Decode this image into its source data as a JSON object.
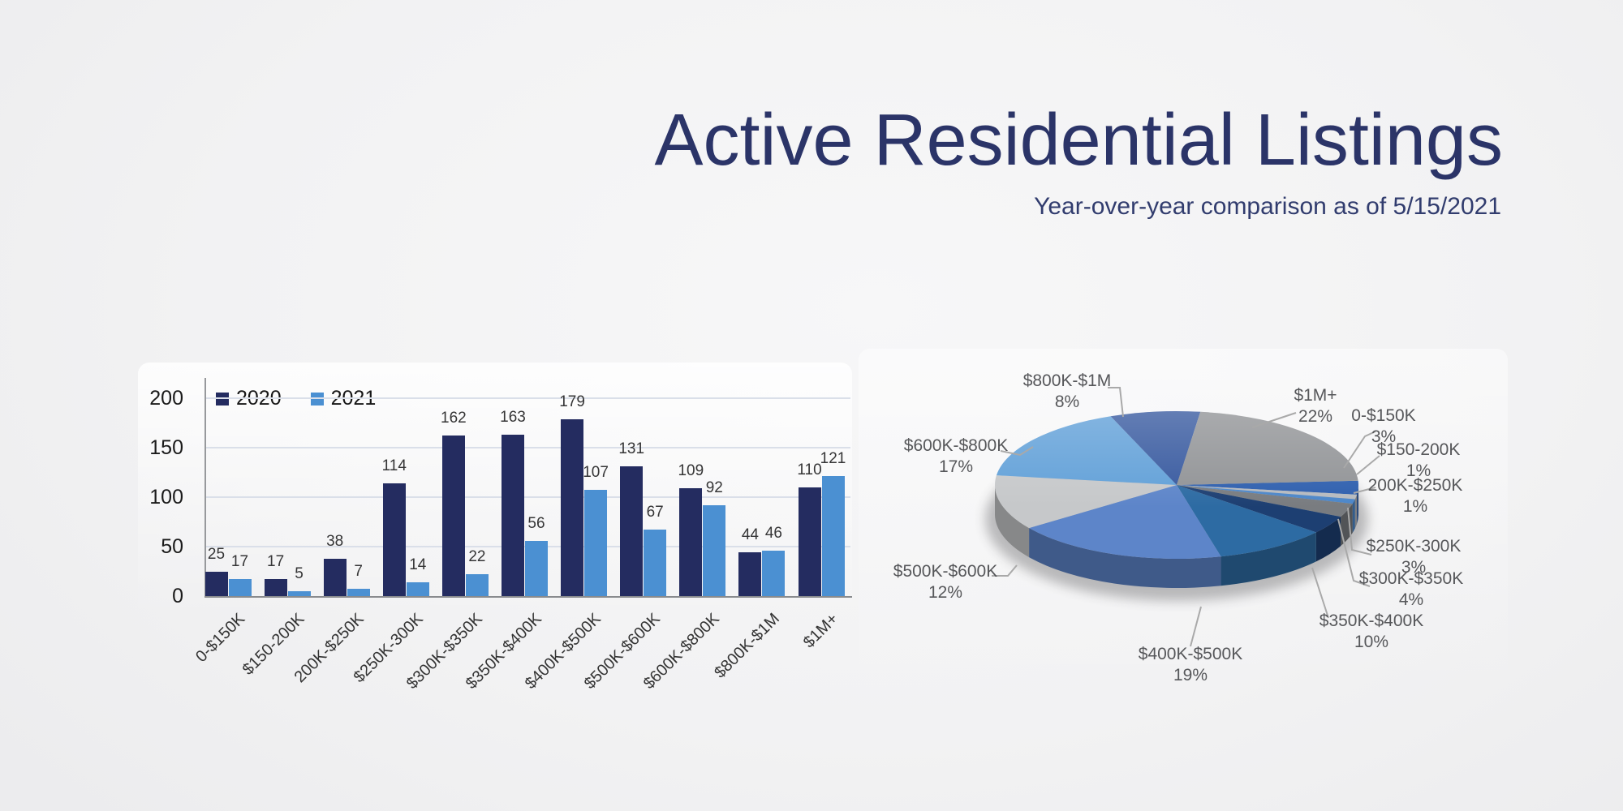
{
  "header": {
    "title": "Active Residential Listings",
    "subtitle": "Year-over-year comparison as of 5/15/2021",
    "title_color": "#2b3468"
  },
  "chart_data": [
    {
      "type": "bar",
      "title": "",
      "xlabel": "",
      "ylabel": "",
      "categories": [
        "0-$150K",
        "$150-200K",
        "200K-$250K",
        "$250K-300K",
        "$300K-$350K",
        "$350K-$400K",
        "$400K-$500K",
        "$500K-$600K",
        "$600K-$800K",
        "$800K-$1M",
        "$1M+"
      ],
      "series": [
        {
          "name": "2020",
          "color": "#242c60",
          "values": [
            25,
            17,
            38,
            114,
            162,
            163,
            179,
            131,
            109,
            44,
            110
          ]
        },
        {
          "name": "2021",
          "color": "#4b90d2",
          "values": [
            17,
            5,
            7,
            14,
            22,
            56,
            107,
            67,
            92,
            46,
            121
          ]
        }
      ],
      "ylim": [
        0,
        210
      ],
      "yticks": [
        0,
        50,
        100,
        150,
        200
      ],
      "grid": true,
      "legend_position": "top-left",
      "value_labels": true,
      "gridline_color": "#dadfe9",
      "axis_color": "#8f9196"
    },
    {
      "type": "pie",
      "style": "3d",
      "start_angle_deg": 86.7,
      "labels": [
        "0-$150K",
        "$150-200K",
        "200K-$250K",
        "$250K-300K",
        "$300K-$350K",
        "$350K-$400K",
        "$400K-$500K",
        "$500K-$600K",
        "$600K-$800K",
        "$800K-$1M",
        "$1M+"
      ],
      "values": [
        3,
        1,
        1,
        3,
        4,
        10,
        19,
        12,
        17,
        8,
        22
      ],
      "percent_labels": [
        "3%",
        "1%",
        "1%",
        "3%",
        "4%",
        "10%",
        "19%",
        "12%",
        "17%",
        "8%",
        "22%"
      ],
      "colors": [
        "#2e5fae",
        "#b6babf",
        "#4d87c9",
        "#797c80",
        "#1d3f72",
        "#2d6ba3",
        "#5d85c9",
        "#c6c8ca",
        "#61a0d8",
        "#37599f",
        "#919396"
      ],
      "label_color": "#56575a",
      "leader_line_color": "#a9a9a9",
      "legend_position": "callout-labels"
    }
  ]
}
